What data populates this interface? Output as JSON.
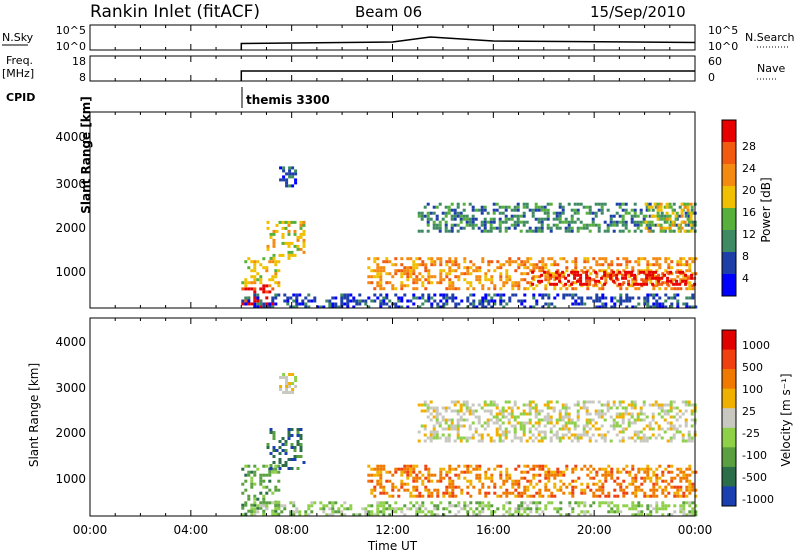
{
  "header": {
    "station_title": "Rankin Inlet (fitACF)",
    "beam_label": "Beam 06",
    "date_label": "15/Sep/2010"
  },
  "status_panels": {
    "nsky_label": "N.Sky",
    "nsky_ticks": [
      "10^5",
      "10^0"
    ],
    "nsearch_label": "N.Search",
    "nsearch_ticks": [
      "10^5",
      "10^0"
    ],
    "freq_label_line1": "Freq.",
    "freq_label_line2": "[MHz]",
    "freq_ticks": [
      "18",
      "8"
    ],
    "nave_label": "Nave",
    "nave_ticks": [
      "60",
      "0"
    ],
    "cpid_label": "CPID",
    "cpid_value": "themis 3300"
  },
  "power_panel": {
    "ylabel": "Slant Range [km]",
    "yticks": [
      "4000",
      "3000",
      "2000",
      "1000"
    ],
    "colorbar_label": "Power [dB]",
    "colorbar_ticks": [
      "28",
      "24",
      "20",
      "16",
      "12",
      "8",
      "4"
    ]
  },
  "velocity_panel": {
    "ylabel": "Slant Range [km]",
    "yticks": [
      "4000",
      "3000",
      "2000",
      "1000"
    ],
    "colorbar_label": "Velocity [m s⁻¹]",
    "colorbar_ticks": [
      "1000",
      "500",
      "100",
      "25",
      "-25",
      "-100",
      "-500",
      "-1000"
    ]
  },
  "x_axis": {
    "ticks": [
      "00:00",
      "04:00",
      "08:00",
      "12:00",
      "16:00",
      "20:00",
      "00:00"
    ],
    "label": "Time UT"
  },
  "colors": {
    "power_scale": [
      "#0000ff",
      "#1f3fa8",
      "#3e8a63",
      "#58b03c",
      "#f0c000",
      "#f58a10",
      "#f25a10",
      "#e80000"
    ],
    "velocity_scale": [
      "#1a3fb0",
      "#2c6e4a",
      "#5aa040",
      "#8ed048",
      "#c8c8c0",
      "#f0b000",
      "#f07a00",
      "#f04010",
      "#e00000"
    ]
  },
  "chart_data": [
    {
      "type": "line",
      "name": "nsky-nsearch",
      "x": [
        "00:00",
        "06:00",
        "06:00",
        "12:00",
        "13:30",
        "16:00",
        "24:00"
      ],
      "y_log10": [
        null,
        0,
        1.3,
        1.6,
        2.6,
        1.8,
        1.5
      ],
      "xlim": [
        "00:00",
        "24:00"
      ],
      "ylim": [
        "10^0",
        "10^5"
      ]
    },
    {
      "type": "line",
      "name": "freq-nave",
      "x": [
        "00:00",
        "06:00",
        "06:00",
        "24:00"
      ],
      "freq_mhz": [
        null,
        8,
        12,
        12
      ],
      "xlim": [
        "00:00",
        "24:00"
      ]
    },
    {
      "type": "heatmap",
      "name": "power",
      "xlim": [
        "00:00",
        "24:00"
      ],
      "ylim_km": [
        180,
        4500
      ],
      "zlim_db": [
        0,
        30
      ],
      "regions": [
        {
          "t_start": 6.0,
          "t_end": 7.3,
          "r_min": 200,
          "r_max": 700,
          "level": 7
        },
        {
          "t_start": 6.0,
          "t_end": 7.5,
          "r_min": 700,
          "r_max": 1300,
          "level": 4
        },
        {
          "t_start": 7.0,
          "t_end": 8.6,
          "r_min": 1300,
          "r_max": 2100,
          "level": 4
        },
        {
          "t_start": 7.5,
          "t_end": 8.2,
          "r_min": 2900,
          "r_max": 3300,
          "level": 1
        },
        {
          "t_start": 11.0,
          "t_end": 24.0,
          "r_min": 600,
          "r_max": 1300,
          "level": 5
        },
        {
          "t_start": 17.5,
          "t_end": 24.0,
          "r_min": 700,
          "r_max": 1000,
          "level": 7
        },
        {
          "t_start": 13.0,
          "t_end": 24.0,
          "r_min": 1900,
          "r_max": 2500,
          "level": 2
        },
        {
          "t_start": 22.0,
          "t_end": 23.8,
          "r_min": 1900,
          "r_max": 2500,
          "level": 4
        },
        {
          "t_start": 6.0,
          "t_end": 24.0,
          "r_min": 180,
          "r_max": 500,
          "level": 1
        }
      ]
    },
    {
      "type": "heatmap",
      "name": "velocity",
      "xlim": [
        "00:00",
        "24:00"
      ],
      "ylim_km": [
        180,
        4500
      ],
      "zlim_ms": [
        -1000,
        1000
      ],
      "regions": [
        {
          "t_start": 6.0,
          "t_end": 7.5,
          "r_min": 200,
          "r_max": 1300,
          "level": 2
        },
        {
          "t_start": 7.0,
          "t_end": 8.5,
          "r_min": 1200,
          "r_max": 2100,
          "level": 1
        },
        {
          "t_start": 7.5,
          "t_end": 8.2,
          "r_min": 2900,
          "r_max": 3300,
          "level": 4
        },
        {
          "t_start": 11.0,
          "t_end": 24.0,
          "r_min": 600,
          "r_max": 1300,
          "level": 6
        },
        {
          "t_start": 13.0,
          "t_end": 24.0,
          "r_min": 1800,
          "r_max": 2700,
          "level": 4
        },
        {
          "t_start": 6.0,
          "t_end": 24.0,
          "r_min": 180,
          "r_max": 500,
          "level": 3
        }
      ]
    }
  ]
}
